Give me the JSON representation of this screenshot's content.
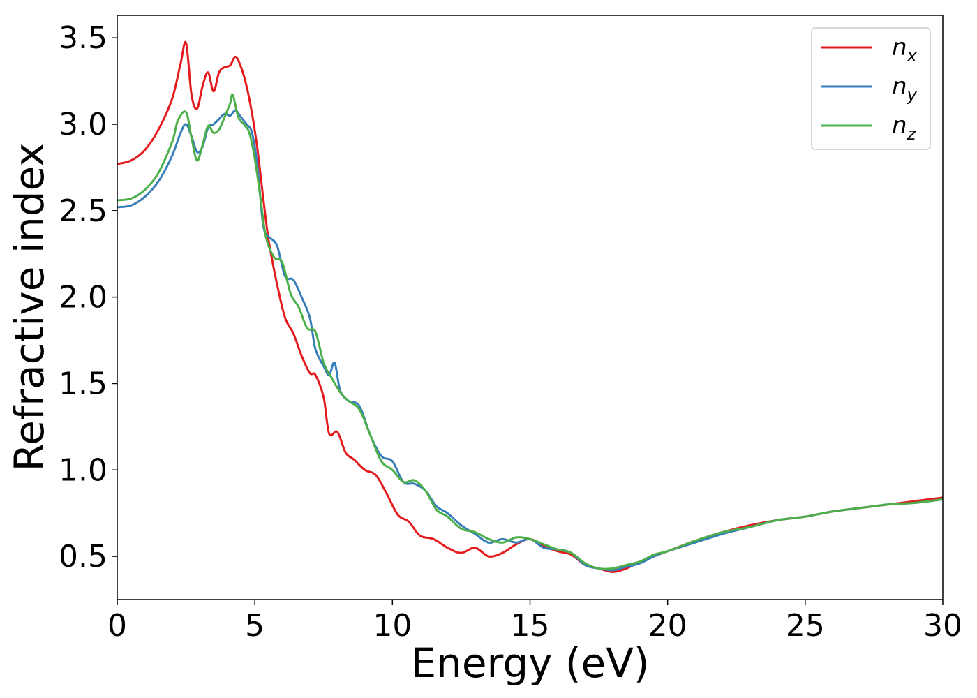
{
  "chart_data": {
    "type": "line",
    "xlabel": "Energy (eV)",
    "ylabel": "Refractive index",
    "xlim": [
      0,
      30
    ],
    "ylim": [
      0.25,
      3.63
    ],
    "xticks": [
      0,
      5,
      10,
      15,
      20,
      25,
      30
    ],
    "xtick_labels": [
      "0",
      "5",
      "10",
      "15",
      "20",
      "25",
      "30"
    ],
    "yticks": [
      0.5,
      1.0,
      1.5,
      2.0,
      2.5,
      3.0,
      3.5
    ],
    "ytick_labels": [
      "0.5",
      "1.0",
      "1.5",
      "2.0",
      "2.5",
      "3.0",
      "3.5"
    ],
    "grid": false,
    "legend_position": "top-right",
    "series": [
      {
        "name": "n_x",
        "legend_base": "n",
        "legend_sub": "x",
        "color": "#e41a1c",
        "x": [
          0,
          0.5,
          1.0,
          1.5,
          2.0,
          2.3,
          2.5,
          2.7,
          2.9,
          3.1,
          3.3,
          3.5,
          3.7,
          3.9,
          4.1,
          4.3,
          4.5,
          4.7,
          4.9,
          5.1,
          5.3,
          5.5,
          5.8,
          6.1,
          6.4,
          6.7,
          7.0,
          7.2,
          7.5,
          7.7,
          8.0,
          8.3,
          8.6,
          9.0,
          9.4,
          9.8,
          10.2,
          10.6,
          11.0,
          11.5,
          12.0,
          12.5,
          13.0,
          13.5,
          14.0,
          14.5,
          15.0,
          15.5,
          16.0,
          16.5,
          17.0,
          17.5,
          18.0,
          18.5,
          19.0,
          19.5,
          20.0,
          21.0,
          22.0,
          23.0,
          24.0,
          25.0,
          26.0,
          27.0,
          28.0,
          29.0,
          30.0
        ],
        "values": [
          2.77,
          2.79,
          2.85,
          2.97,
          3.15,
          3.35,
          3.47,
          3.17,
          3.09,
          3.22,
          3.3,
          3.19,
          3.3,
          3.33,
          3.34,
          3.39,
          3.33,
          3.22,
          3.06,
          2.85,
          2.58,
          2.33,
          2.08,
          1.88,
          1.79,
          1.66,
          1.56,
          1.55,
          1.42,
          1.21,
          1.22,
          1.1,
          1.06,
          1.0,
          0.97,
          0.86,
          0.74,
          0.7,
          0.62,
          0.6,
          0.55,
          0.52,
          0.55,
          0.5,
          0.52,
          0.57,
          0.6,
          0.56,
          0.53,
          0.51,
          0.45,
          0.43,
          0.41,
          0.43,
          0.47,
          0.5,
          0.53,
          0.59,
          0.64,
          0.68,
          0.71,
          0.73,
          0.76,
          0.78,
          0.8,
          0.82,
          0.84
        ]
      },
      {
        "name": "n_y",
        "legend_base": "n",
        "legend_sub": "y",
        "color": "#377eb8",
        "x": [
          0,
          0.5,
          1.0,
          1.5,
          2.0,
          2.3,
          2.5,
          2.7,
          2.9,
          3.1,
          3.3,
          3.5,
          3.7,
          3.9,
          4.1,
          4.3,
          4.5,
          4.7,
          4.9,
          5.1,
          5.3,
          5.5,
          5.8,
          6.1,
          6.4,
          6.7,
          7.0,
          7.2,
          7.5,
          7.7,
          7.9,
          8.1,
          8.4,
          8.8,
          9.2,
          9.6,
          10.0,
          10.4,
          10.8,
          11.2,
          11.6,
          12.0,
          12.5,
          13.0,
          13.5,
          14.0,
          14.5,
          15.0,
          15.5,
          16.0,
          16.5,
          17.0,
          17.5,
          18.0,
          18.5,
          19.0,
          19.5,
          20.0,
          21.0,
          22.0,
          23.0,
          24.0,
          25.0,
          26.0,
          27.0,
          28.0,
          29.0,
          30.0
        ],
        "values": [
          2.52,
          2.53,
          2.58,
          2.67,
          2.82,
          2.95,
          3.0,
          2.93,
          2.84,
          2.87,
          2.98,
          3.0,
          3.03,
          3.06,
          3.05,
          3.08,
          3.04,
          3.0,
          2.95,
          2.75,
          2.42,
          2.35,
          2.3,
          2.12,
          2.1,
          2.0,
          1.88,
          1.7,
          1.6,
          1.55,
          1.62,
          1.46,
          1.4,
          1.37,
          1.2,
          1.08,
          1.05,
          0.93,
          0.92,
          0.88,
          0.79,
          0.75,
          0.68,
          0.63,
          0.58,
          0.6,
          0.58,
          0.6,
          0.55,
          0.54,
          0.52,
          0.45,
          0.43,
          0.42,
          0.44,
          0.46,
          0.5,
          0.53,
          0.58,
          0.63,
          0.67,
          0.71,
          0.73,
          0.76,
          0.78,
          0.8,
          0.81,
          0.83
        ]
      },
      {
        "name": "n_z",
        "legend_base": "n",
        "legend_sub": "z",
        "color": "#4daf4a",
        "x": [
          0,
          0.5,
          1.0,
          1.5,
          2.0,
          2.2,
          2.5,
          2.7,
          2.9,
          3.1,
          3.3,
          3.5,
          3.7,
          3.9,
          4.1,
          4.2,
          4.4,
          4.6,
          4.8,
          5.0,
          5.2,
          5.4,
          5.7,
          6.0,
          6.3,
          6.6,
          6.9,
          7.2,
          7.5,
          7.8,
          8.1,
          8.4,
          8.8,
          9.2,
          9.6,
          10.0,
          10.4,
          10.8,
          11.2,
          11.6,
          12.0,
          12.5,
          13.0,
          13.5,
          14.0,
          14.5,
          15.0,
          15.5,
          16.0,
          16.5,
          17.0,
          17.5,
          18.0,
          18.5,
          19.0,
          19.5,
          20.0,
          21.0,
          22.0,
          23.0,
          24.0,
          25.0,
          26.0,
          27.0,
          28.0,
          29.0,
          30.0
        ],
        "values": [
          2.56,
          2.57,
          2.62,
          2.72,
          2.9,
          3.02,
          3.07,
          2.92,
          2.79,
          2.88,
          2.99,
          2.95,
          2.97,
          3.04,
          3.12,
          3.17,
          3.04,
          3.0,
          2.95,
          2.8,
          2.58,
          2.35,
          2.23,
          2.2,
          2.02,
          1.94,
          1.82,
          1.8,
          1.62,
          1.53,
          1.45,
          1.4,
          1.35,
          1.2,
          1.05,
          1.0,
          0.93,
          0.94,
          0.88,
          0.77,
          0.73,
          0.66,
          0.64,
          0.6,
          0.58,
          0.61,
          0.6,
          0.57,
          0.54,
          0.52,
          0.46,
          0.43,
          0.43,
          0.45,
          0.47,
          0.51,
          0.53,
          0.59,
          0.64,
          0.67,
          0.71,
          0.73,
          0.76,
          0.78,
          0.8,
          0.81,
          0.83
        ]
      }
    ]
  }
}
